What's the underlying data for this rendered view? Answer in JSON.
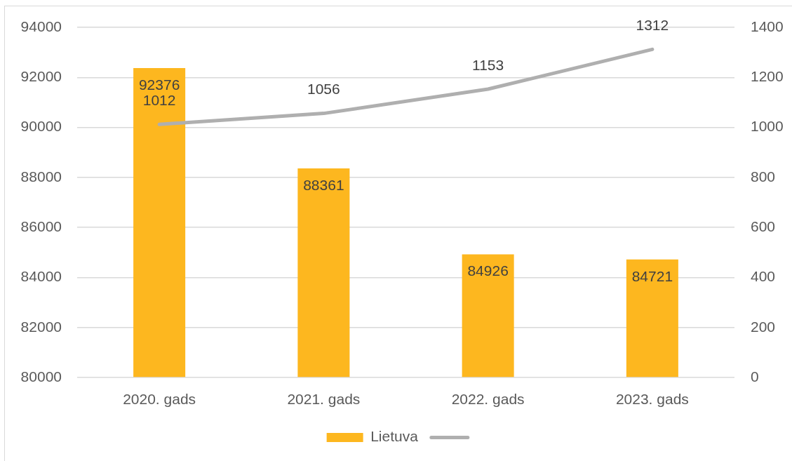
{
  "chart_data": {
    "type": "bar",
    "categories": [
      "2020. gads",
      "2021. gads",
      "2022. gads",
      "2023. gads"
    ],
    "series": [
      {
        "name": "Lietuva",
        "color": "#fdb71f",
        "values": [
          92376,
          88361,
          84926,
          84721
        ]
      },
      {
        "type": "line",
        "axis": "y2",
        "color": "#afafaf",
        "values": [
          1012,
          1056,
          1153,
          1312
        ]
      }
    ],
    "ylim": [
      80000,
      94000
    ],
    "yticks": [
      80000,
      82000,
      84000,
      86000,
      88000,
      90000,
      92000,
      94000
    ],
    "y2lim": [
      0,
      1400
    ],
    "y2ticks": [
      0,
      200,
      400,
      600,
      800,
      1000,
      1200,
      1400
    ],
    "data_labels": true,
    "grid": "y",
    "legend": "bottom"
  }
}
